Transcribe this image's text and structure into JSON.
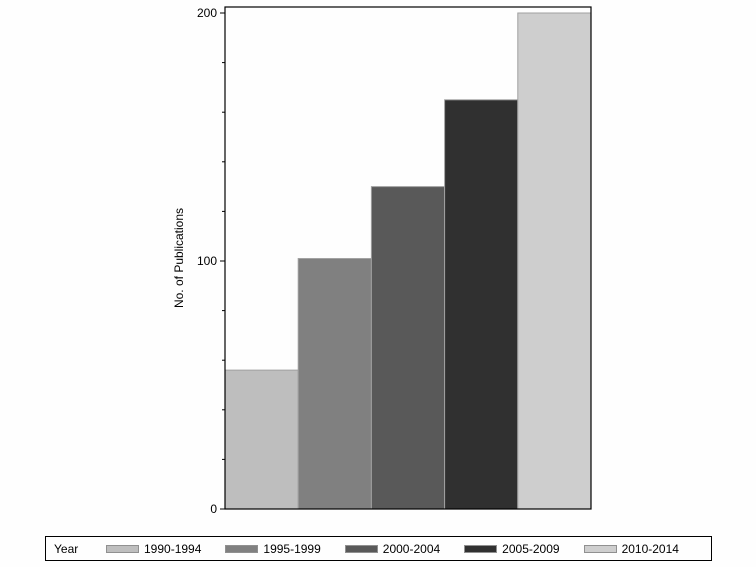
{
  "chart_data": {
    "type": "bar",
    "title": "",
    "xlabel": "",
    "ylabel": "No. of Publications",
    "ylim": [
      0,
      200
    ],
    "yticks_major": [
      0,
      100,
      200
    ],
    "yticks_minor_step": 20,
    "grid": false,
    "legend_position": "bottom",
    "legend_title": "Year",
    "categories": [
      "1990-1994",
      "1995-1999",
      "2000-2004",
      "2005-2009",
      "2010-2014"
    ],
    "values": [
      56,
      101,
      130,
      165,
      200
    ],
    "colors": [
      "#bebebe",
      "#808080",
      "#595959",
      "#303030",
      "#cecece"
    ]
  },
  "legend": {
    "title": "Year",
    "items": [
      {
        "label": "1990-1994",
        "color": "#bebebe"
      },
      {
        "label": "1995-1999",
        "color": "#808080"
      },
      {
        "label": "2000-2004",
        "color": "#595959"
      },
      {
        "label": "2005-2009",
        "color": "#303030"
      },
      {
        "label": "2010-2014",
        "color": "#cecece"
      }
    ]
  }
}
